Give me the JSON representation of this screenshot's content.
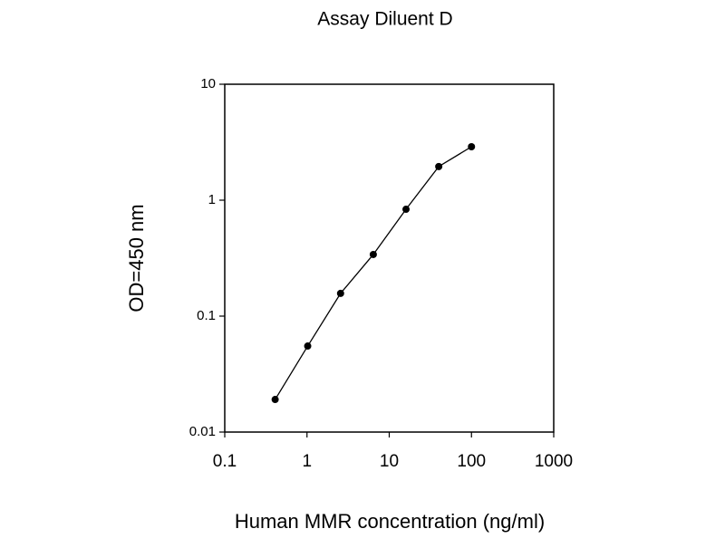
{
  "chart_data": {
    "type": "line",
    "title": "Assay Diluent D",
    "x_label": "Human MMR concentration (ng/ml)",
    "y_label": "OD=450 nm",
    "x": [
      0.41,
      1.02,
      2.56,
      6.4,
      16,
      40,
      100
    ],
    "series": [
      {
        "name": "Assay Diluent D",
        "color": "#000000",
        "values": [
          0.0191,
          0.0552,
          0.157,
          0.34,
          0.835,
          1.95,
          2.89
        ]
      }
    ],
    "xlim": [
      0.1,
      1000
    ],
    "ylim": [
      0.01,
      10
    ],
    "xticks": [
      0.1,
      1,
      10,
      100,
      1000
    ],
    "yticks": [
      0.01,
      0.1,
      1,
      10
    ],
    "xscale": "log",
    "yscale": "log",
    "grid": false
  }
}
